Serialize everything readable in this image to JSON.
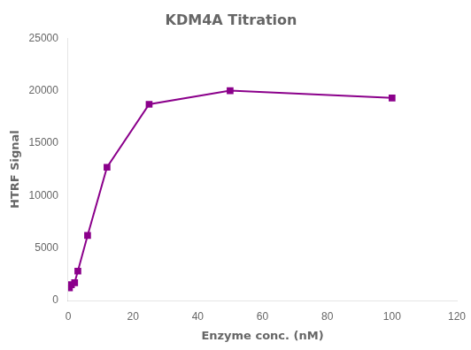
{
  "chart_data": {
    "type": "line",
    "title": "KDM4A Titration",
    "x_label": "Enzyme conc. (nM)",
    "y_label": "HTRF Signal",
    "x": [
      0.4,
      1,
      2,
      3,
      6,
      12,
      25,
      50,
      100
    ],
    "values": [
      1200,
      1500,
      1700,
      2800,
      6200,
      12700,
      18700,
      20000,
      19300
    ],
    "color": "#8B008B",
    "marker": "square",
    "line_style": "solid",
    "xlim": [
      0,
      120
    ],
    "ylim": [
      0,
      25000
    ],
    "xticks": [
      0,
      20,
      40,
      60,
      80,
      100,
      120
    ],
    "yticks": [
      0,
      5000,
      10000,
      15000,
      20000,
      25000
    ],
    "grid": false
  }
}
